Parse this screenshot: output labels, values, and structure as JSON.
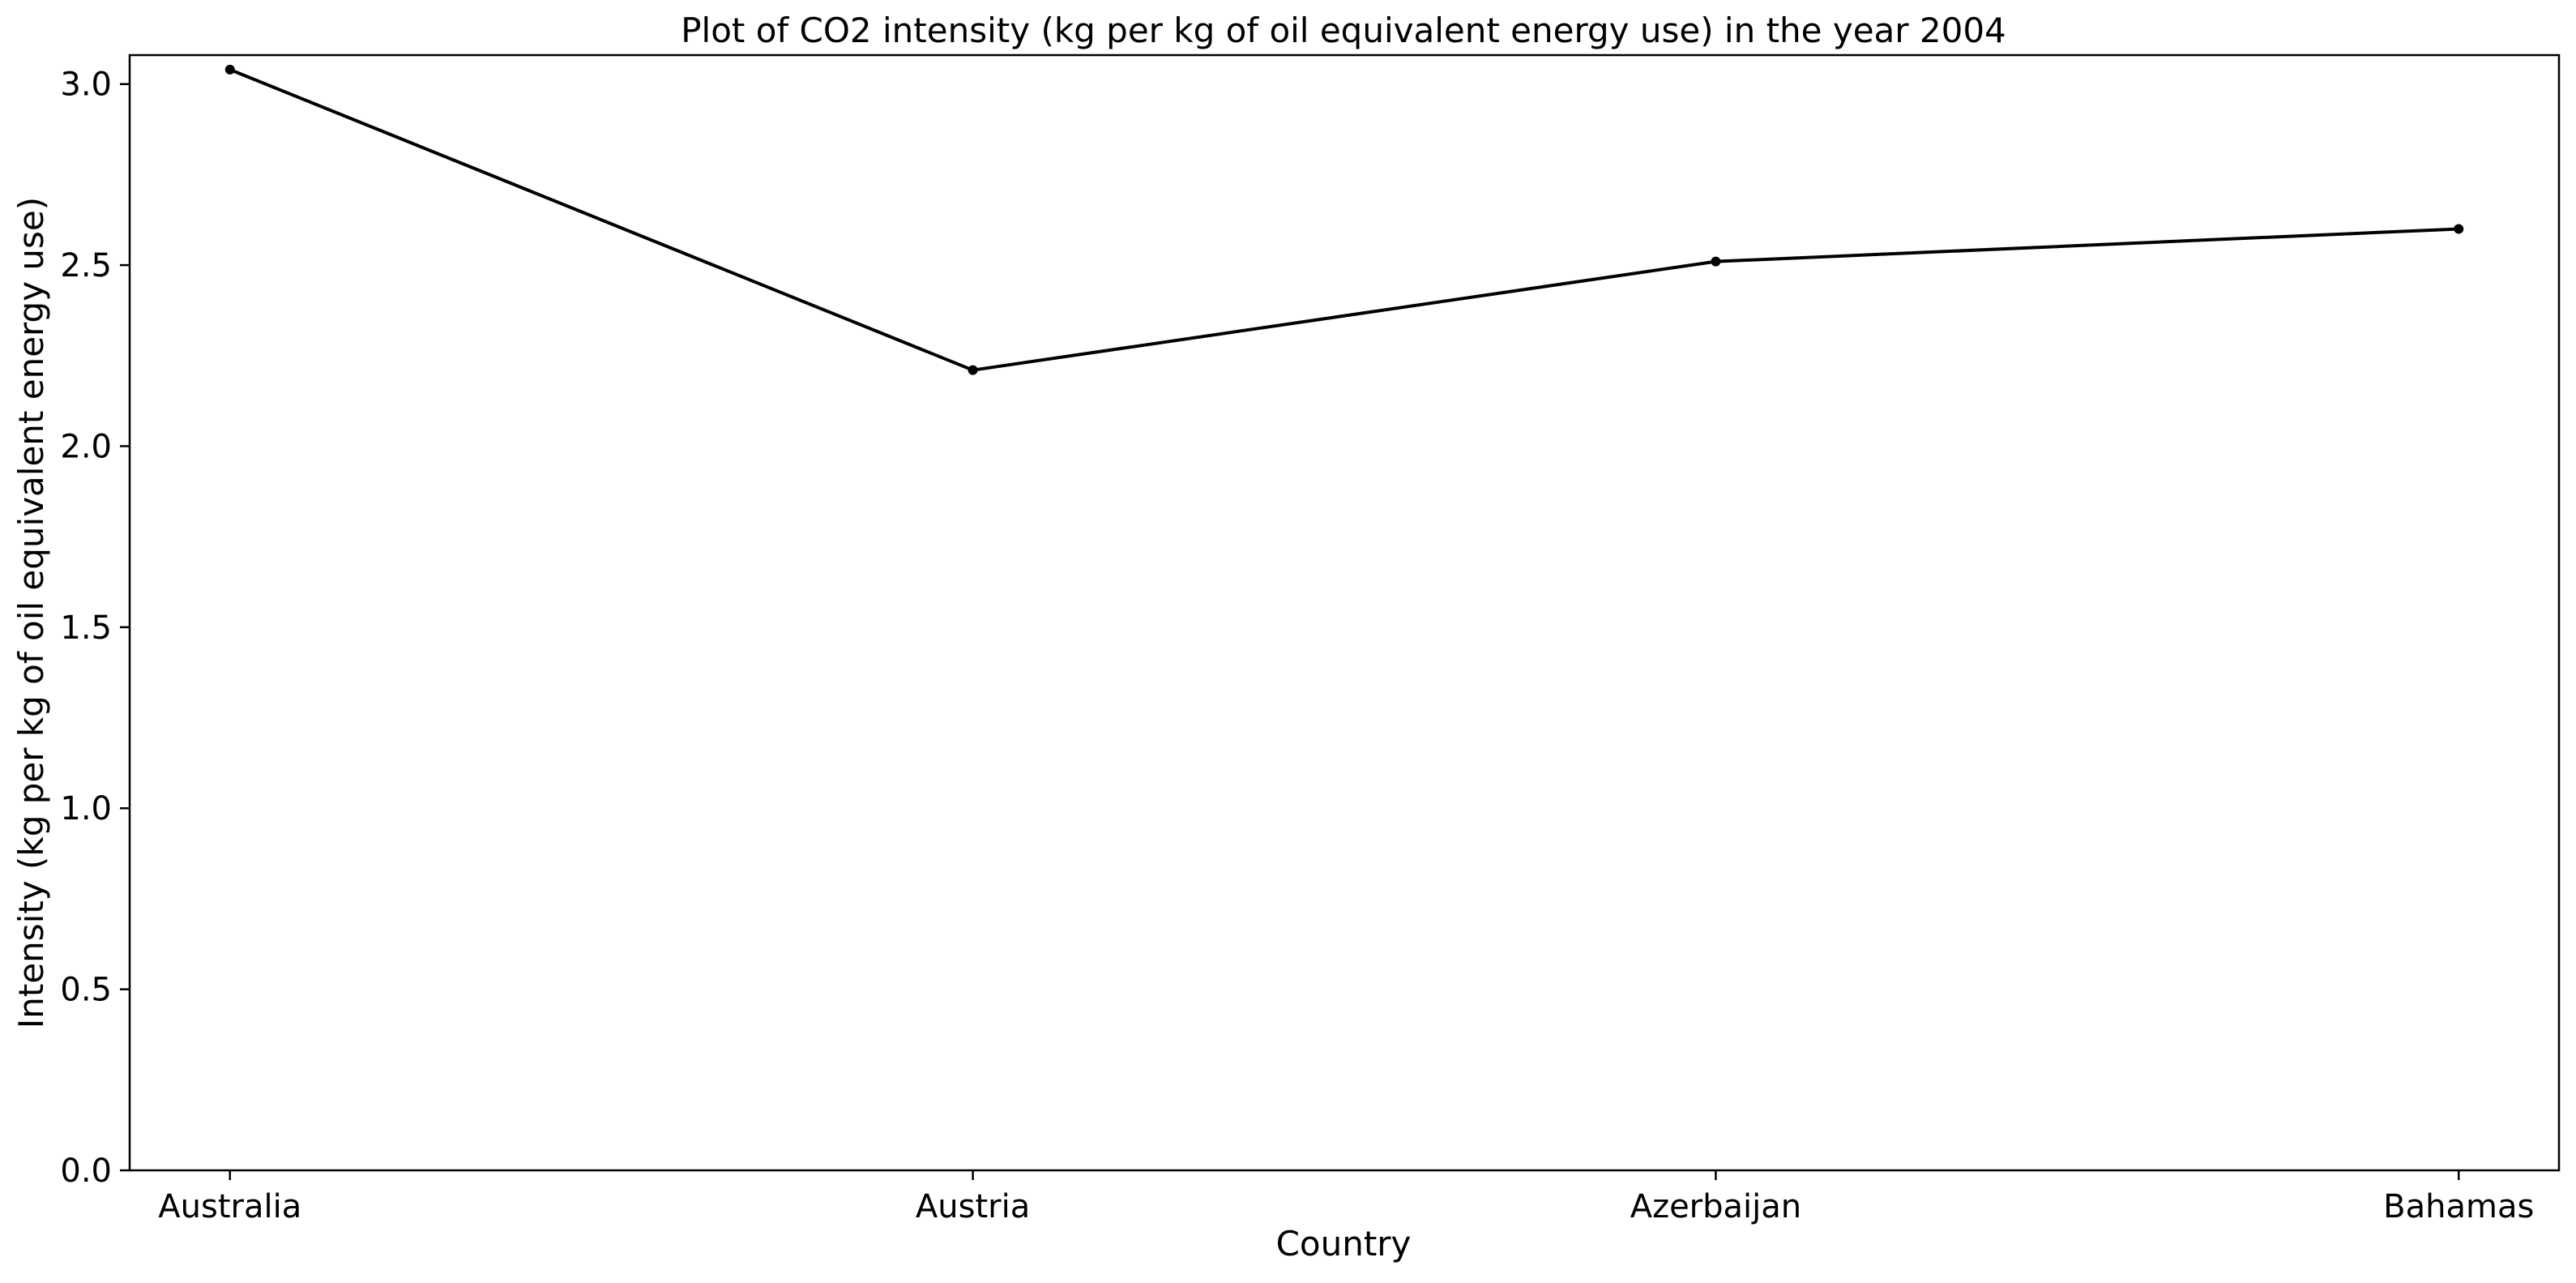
{
  "chart_data": {
    "type": "line",
    "title": "Plot of CO2 intensity (kg per kg of oil equivalent energy use) in the year 2004",
    "xlabel": "Country",
    "ylabel": "Intensity (kg per kg of oil equivalent energy use)",
    "categories": [
      "Australia",
      "Austria",
      "Azerbaijan",
      "Bahamas"
    ],
    "series": [
      {
        "values": [
          3.04,
          2.21,
          2.51,
          2.6
        ],
        "color": "#000000",
        "marker": "dot"
      }
    ],
    "ylim": [
      0,
      3.08
    ],
    "yticks": [
      0.0,
      0.5,
      1.0,
      1.5,
      2.0,
      2.5,
      3.0
    ],
    "ytick_labels": [
      "0.0",
      "0.5",
      "1.0",
      "1.5",
      "2.0",
      "2.5",
      "3.0"
    ],
    "grid": false,
    "legend": "none"
  }
}
